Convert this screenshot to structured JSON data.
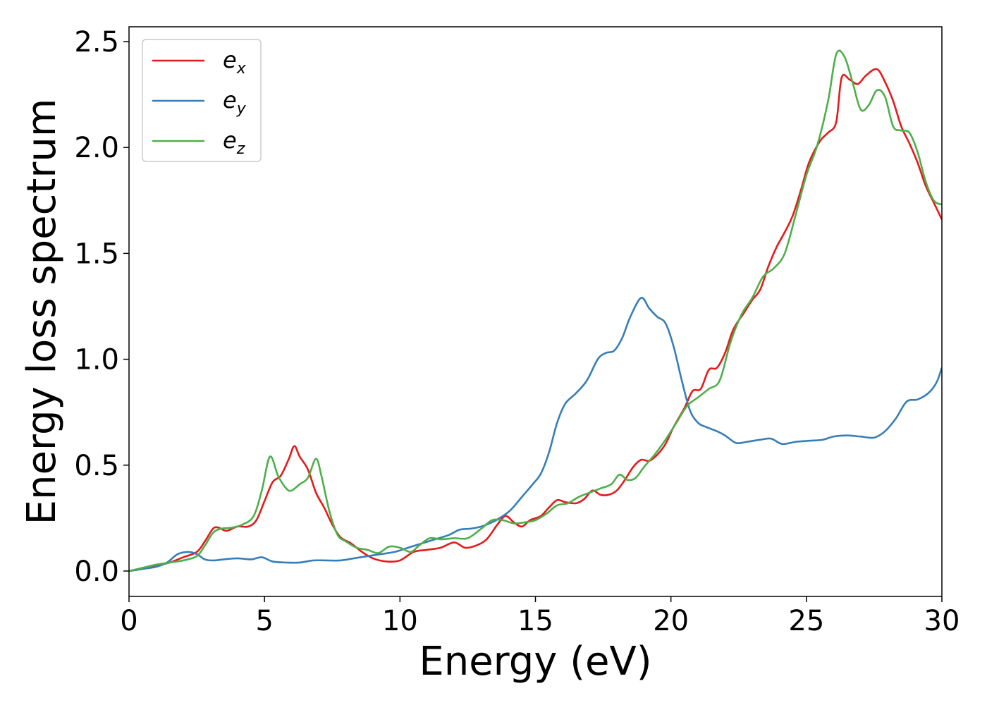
{
  "chart_data": {
    "type": "line",
    "title": "",
    "xlabel": "Energy (eV)",
    "ylabel": "Energy loss spectrum",
    "xlim": [
      0,
      30
    ],
    "ylim": [
      -0.12,
      2.57
    ],
    "xticks": [
      0,
      5,
      10,
      15,
      20,
      25,
      30
    ],
    "xtick_labels": [
      "0",
      "5",
      "10",
      "15",
      "20",
      "25",
      "30"
    ],
    "yticks": [
      0.0,
      0.5,
      1.0,
      1.5,
      2.0,
      2.5
    ],
    "ytick_labels": [
      "0.0",
      "0.5",
      "1.0",
      "1.5",
      "2.0",
      "2.5"
    ],
    "grid": false,
    "legend_position": "top-left",
    "series": [
      {
        "name": "e",
        "subscript": "x",
        "color": "#e41a1c",
        "points": [
          [
            0,
            0.0
          ],
          [
            0.5,
            0.01
          ],
          [
            1.0,
            0.025
          ],
          [
            1.5,
            0.04
          ],
          [
            2.0,
            0.065
          ],
          [
            2.5,
            0.09
          ],
          [
            2.8,
            0.14
          ],
          [
            3.1,
            0.2
          ],
          [
            3.3,
            0.205
          ],
          [
            3.6,
            0.19
          ],
          [
            4.0,
            0.21
          ],
          [
            4.4,
            0.21
          ],
          [
            4.7,
            0.24
          ],
          [
            5.0,
            0.33
          ],
          [
            5.3,
            0.42
          ],
          [
            5.6,
            0.45
          ],
          [
            5.9,
            0.53
          ],
          [
            6.1,
            0.59
          ],
          [
            6.3,
            0.54
          ],
          [
            6.6,
            0.48
          ],
          [
            6.9,
            0.37
          ],
          [
            7.2,
            0.3
          ],
          [
            7.5,
            0.22
          ],
          [
            7.8,
            0.16
          ],
          [
            8.2,
            0.13
          ],
          [
            8.6,
            0.09
          ],
          [
            9.0,
            0.06
          ],
          [
            9.5,
            0.045
          ],
          [
            10.0,
            0.05
          ],
          [
            10.5,
            0.09
          ],
          [
            11.0,
            0.1
          ],
          [
            11.5,
            0.11
          ],
          [
            12.0,
            0.135
          ],
          [
            12.4,
            0.11
          ],
          [
            12.8,
            0.12
          ],
          [
            13.2,
            0.15
          ],
          [
            13.6,
            0.22
          ],
          [
            13.9,
            0.26
          ],
          [
            14.2,
            0.23
          ],
          [
            14.5,
            0.21
          ],
          [
            14.8,
            0.24
          ],
          [
            15.2,
            0.26
          ],
          [
            15.5,
            0.3
          ],
          [
            15.8,
            0.335
          ],
          [
            16.1,
            0.325
          ],
          [
            16.5,
            0.32
          ],
          [
            16.8,
            0.34
          ],
          [
            17.1,
            0.38
          ],
          [
            17.4,
            0.36
          ],
          [
            17.7,
            0.36
          ],
          [
            18.0,
            0.38
          ],
          [
            18.3,
            0.43
          ],
          [
            18.6,
            0.49
          ],
          [
            18.9,
            0.525
          ],
          [
            19.2,
            0.52
          ],
          [
            19.5,
            0.55
          ],
          [
            19.8,
            0.6
          ],
          [
            20.1,
            0.68
          ],
          [
            20.5,
            0.77
          ],
          [
            20.8,
            0.85
          ],
          [
            21.1,
            0.86
          ],
          [
            21.4,
            0.95
          ],
          [
            21.7,
            0.96
          ],
          [
            22.0,
            1.03
          ],
          [
            22.3,
            1.14
          ],
          [
            22.7,
            1.22
          ],
          [
            23.0,
            1.28
          ],
          [
            23.3,
            1.33
          ],
          [
            23.6,
            1.44
          ],
          [
            23.9,
            1.53
          ],
          [
            24.2,
            1.6
          ],
          [
            24.5,
            1.68
          ],
          [
            24.8,
            1.8
          ],
          [
            25.1,
            1.93
          ],
          [
            25.5,
            2.03
          ],
          [
            25.8,
            2.07
          ],
          [
            26.1,
            2.12
          ],
          [
            26.3,
            2.33
          ],
          [
            26.6,
            2.32
          ],
          [
            26.9,
            2.3
          ],
          [
            27.2,
            2.34
          ],
          [
            27.6,
            2.37
          ],
          [
            27.9,
            2.31
          ],
          [
            28.2,
            2.22
          ],
          [
            28.5,
            2.1
          ],
          [
            28.8,
            2.02
          ],
          [
            29.1,
            1.93
          ],
          [
            29.4,
            1.82
          ],
          [
            29.7,
            1.74
          ],
          [
            30.0,
            1.66
          ]
        ]
      },
      {
        "name": "e",
        "subscript": "y",
        "color": "#377eb8",
        "points": [
          [
            0,
            0.0
          ],
          [
            0.5,
            0.01
          ],
          [
            1.0,
            0.02
          ],
          [
            1.4,
            0.04
          ],
          [
            1.8,
            0.08
          ],
          [
            2.2,
            0.09
          ],
          [
            2.5,
            0.08
          ],
          [
            2.8,
            0.055
          ],
          [
            3.1,
            0.05
          ],
          [
            3.5,
            0.055
          ],
          [
            4.0,
            0.06
          ],
          [
            4.5,
            0.055
          ],
          [
            4.9,
            0.065
          ],
          [
            5.3,
            0.045
          ],
          [
            5.8,
            0.04
          ],
          [
            6.3,
            0.04
          ],
          [
            6.8,
            0.05
          ],
          [
            7.3,
            0.05
          ],
          [
            7.8,
            0.05
          ],
          [
            8.3,
            0.06
          ],
          [
            8.8,
            0.07
          ],
          [
            9.3,
            0.08
          ],
          [
            9.8,
            0.09
          ],
          [
            10.3,
            0.11
          ],
          [
            10.8,
            0.13
          ],
          [
            11.3,
            0.15
          ],
          [
            11.8,
            0.17
          ],
          [
            12.2,
            0.195
          ],
          [
            12.6,
            0.2
          ],
          [
            13.0,
            0.21
          ],
          [
            13.4,
            0.23
          ],
          [
            13.8,
            0.26
          ],
          [
            14.1,
            0.29
          ],
          [
            14.5,
            0.35
          ],
          [
            14.9,
            0.41
          ],
          [
            15.2,
            0.46
          ],
          [
            15.5,
            0.56
          ],
          [
            15.8,
            0.7
          ],
          [
            16.1,
            0.79
          ],
          [
            16.5,
            0.84
          ],
          [
            16.9,
            0.9
          ],
          [
            17.3,
            1.0
          ],
          [
            17.6,
            1.03
          ],
          [
            17.9,
            1.04
          ],
          [
            18.2,
            1.1
          ],
          [
            18.5,
            1.2
          ],
          [
            18.9,
            1.29
          ],
          [
            19.2,
            1.24
          ],
          [
            19.5,
            1.2
          ],
          [
            19.8,
            1.17
          ],
          [
            20.1,
            1.06
          ],
          [
            20.4,
            0.9
          ],
          [
            20.7,
            0.76
          ],
          [
            21.0,
            0.7
          ],
          [
            21.3,
            0.68
          ],
          [
            21.7,
            0.66
          ],
          [
            22.0,
            0.64
          ],
          [
            22.4,
            0.605
          ],
          [
            22.8,
            0.61
          ],
          [
            23.3,
            0.62
          ],
          [
            23.7,
            0.625
          ],
          [
            24.1,
            0.6
          ],
          [
            24.6,
            0.61
          ],
          [
            25.1,
            0.615
          ],
          [
            25.6,
            0.62
          ],
          [
            26.0,
            0.635
          ],
          [
            26.5,
            0.64
          ],
          [
            27.0,
            0.635
          ],
          [
            27.5,
            0.63
          ],
          [
            27.9,
            0.66
          ],
          [
            28.3,
            0.72
          ],
          [
            28.7,
            0.8
          ],
          [
            29.1,
            0.81
          ],
          [
            29.5,
            0.84
          ],
          [
            29.8,
            0.89
          ],
          [
            30.0,
            0.96
          ]
        ]
      },
      {
        "name": "e",
        "subscript": "z",
        "color": "#4daf4a",
        "points": [
          [
            0,
            0.0
          ],
          [
            0.5,
            0.015
          ],
          [
            1.0,
            0.03
          ],
          [
            1.5,
            0.04
          ],
          [
            2.0,
            0.05
          ],
          [
            2.5,
            0.07
          ],
          [
            2.8,
            0.12
          ],
          [
            3.1,
            0.18
          ],
          [
            3.4,
            0.2
          ],
          [
            3.8,
            0.205
          ],
          [
            4.2,
            0.22
          ],
          [
            4.6,
            0.26
          ],
          [
            4.9,
            0.38
          ],
          [
            5.2,
            0.54
          ],
          [
            5.5,
            0.45
          ],
          [
            5.8,
            0.39
          ],
          [
            6.0,
            0.38
          ],
          [
            6.3,
            0.41
          ],
          [
            6.6,
            0.44
          ],
          [
            6.9,
            0.53
          ],
          [
            7.1,
            0.45
          ],
          [
            7.4,
            0.28
          ],
          [
            7.7,
            0.17
          ],
          [
            8.0,
            0.14
          ],
          [
            8.4,
            0.11
          ],
          [
            8.8,
            0.1
          ],
          [
            9.2,
            0.085
          ],
          [
            9.6,
            0.115
          ],
          [
            10.0,
            0.11
          ],
          [
            10.4,
            0.09
          ],
          [
            10.7,
            0.12
          ],
          [
            11.1,
            0.155
          ],
          [
            11.5,
            0.15
          ],
          [
            12.0,
            0.155
          ],
          [
            12.5,
            0.155
          ],
          [
            13.0,
            0.2
          ],
          [
            13.4,
            0.24
          ],
          [
            13.8,
            0.24
          ],
          [
            14.2,
            0.225
          ],
          [
            14.6,
            0.23
          ],
          [
            15.0,
            0.24
          ],
          [
            15.4,
            0.27
          ],
          [
            15.8,
            0.31
          ],
          [
            16.2,
            0.32
          ],
          [
            16.6,
            0.35
          ],
          [
            17.0,
            0.37
          ],
          [
            17.4,
            0.39
          ],
          [
            17.8,
            0.41
          ],
          [
            18.1,
            0.455
          ],
          [
            18.4,
            0.43
          ],
          [
            18.7,
            0.44
          ],
          [
            19.0,
            0.49
          ],
          [
            19.4,
            0.55
          ],
          [
            19.8,
            0.62
          ],
          [
            20.2,
            0.7
          ],
          [
            20.6,
            0.78
          ],
          [
            21.0,
            0.82
          ],
          [
            21.4,
            0.86
          ],
          [
            21.8,
            0.9
          ],
          [
            22.2,
            1.08
          ],
          [
            22.6,
            1.21
          ],
          [
            23.0,
            1.29
          ],
          [
            23.4,
            1.39
          ],
          [
            23.8,
            1.43
          ],
          [
            24.2,
            1.5
          ],
          [
            24.6,
            1.68
          ],
          [
            25.0,
            1.87
          ],
          [
            25.4,
            2.01
          ],
          [
            25.8,
            2.22
          ],
          [
            26.1,
            2.44
          ],
          [
            26.4,
            2.43
          ],
          [
            26.7,
            2.31
          ],
          [
            27.0,
            2.18
          ],
          [
            27.3,
            2.2
          ],
          [
            27.6,
            2.27
          ],
          [
            27.9,
            2.24
          ],
          [
            28.2,
            2.1
          ],
          [
            28.5,
            2.08
          ],
          [
            28.8,
            2.07
          ],
          [
            29.1,
            1.98
          ],
          [
            29.4,
            1.84
          ],
          [
            29.7,
            1.75
          ],
          [
            30.0,
            1.73
          ]
        ]
      }
    ]
  }
}
